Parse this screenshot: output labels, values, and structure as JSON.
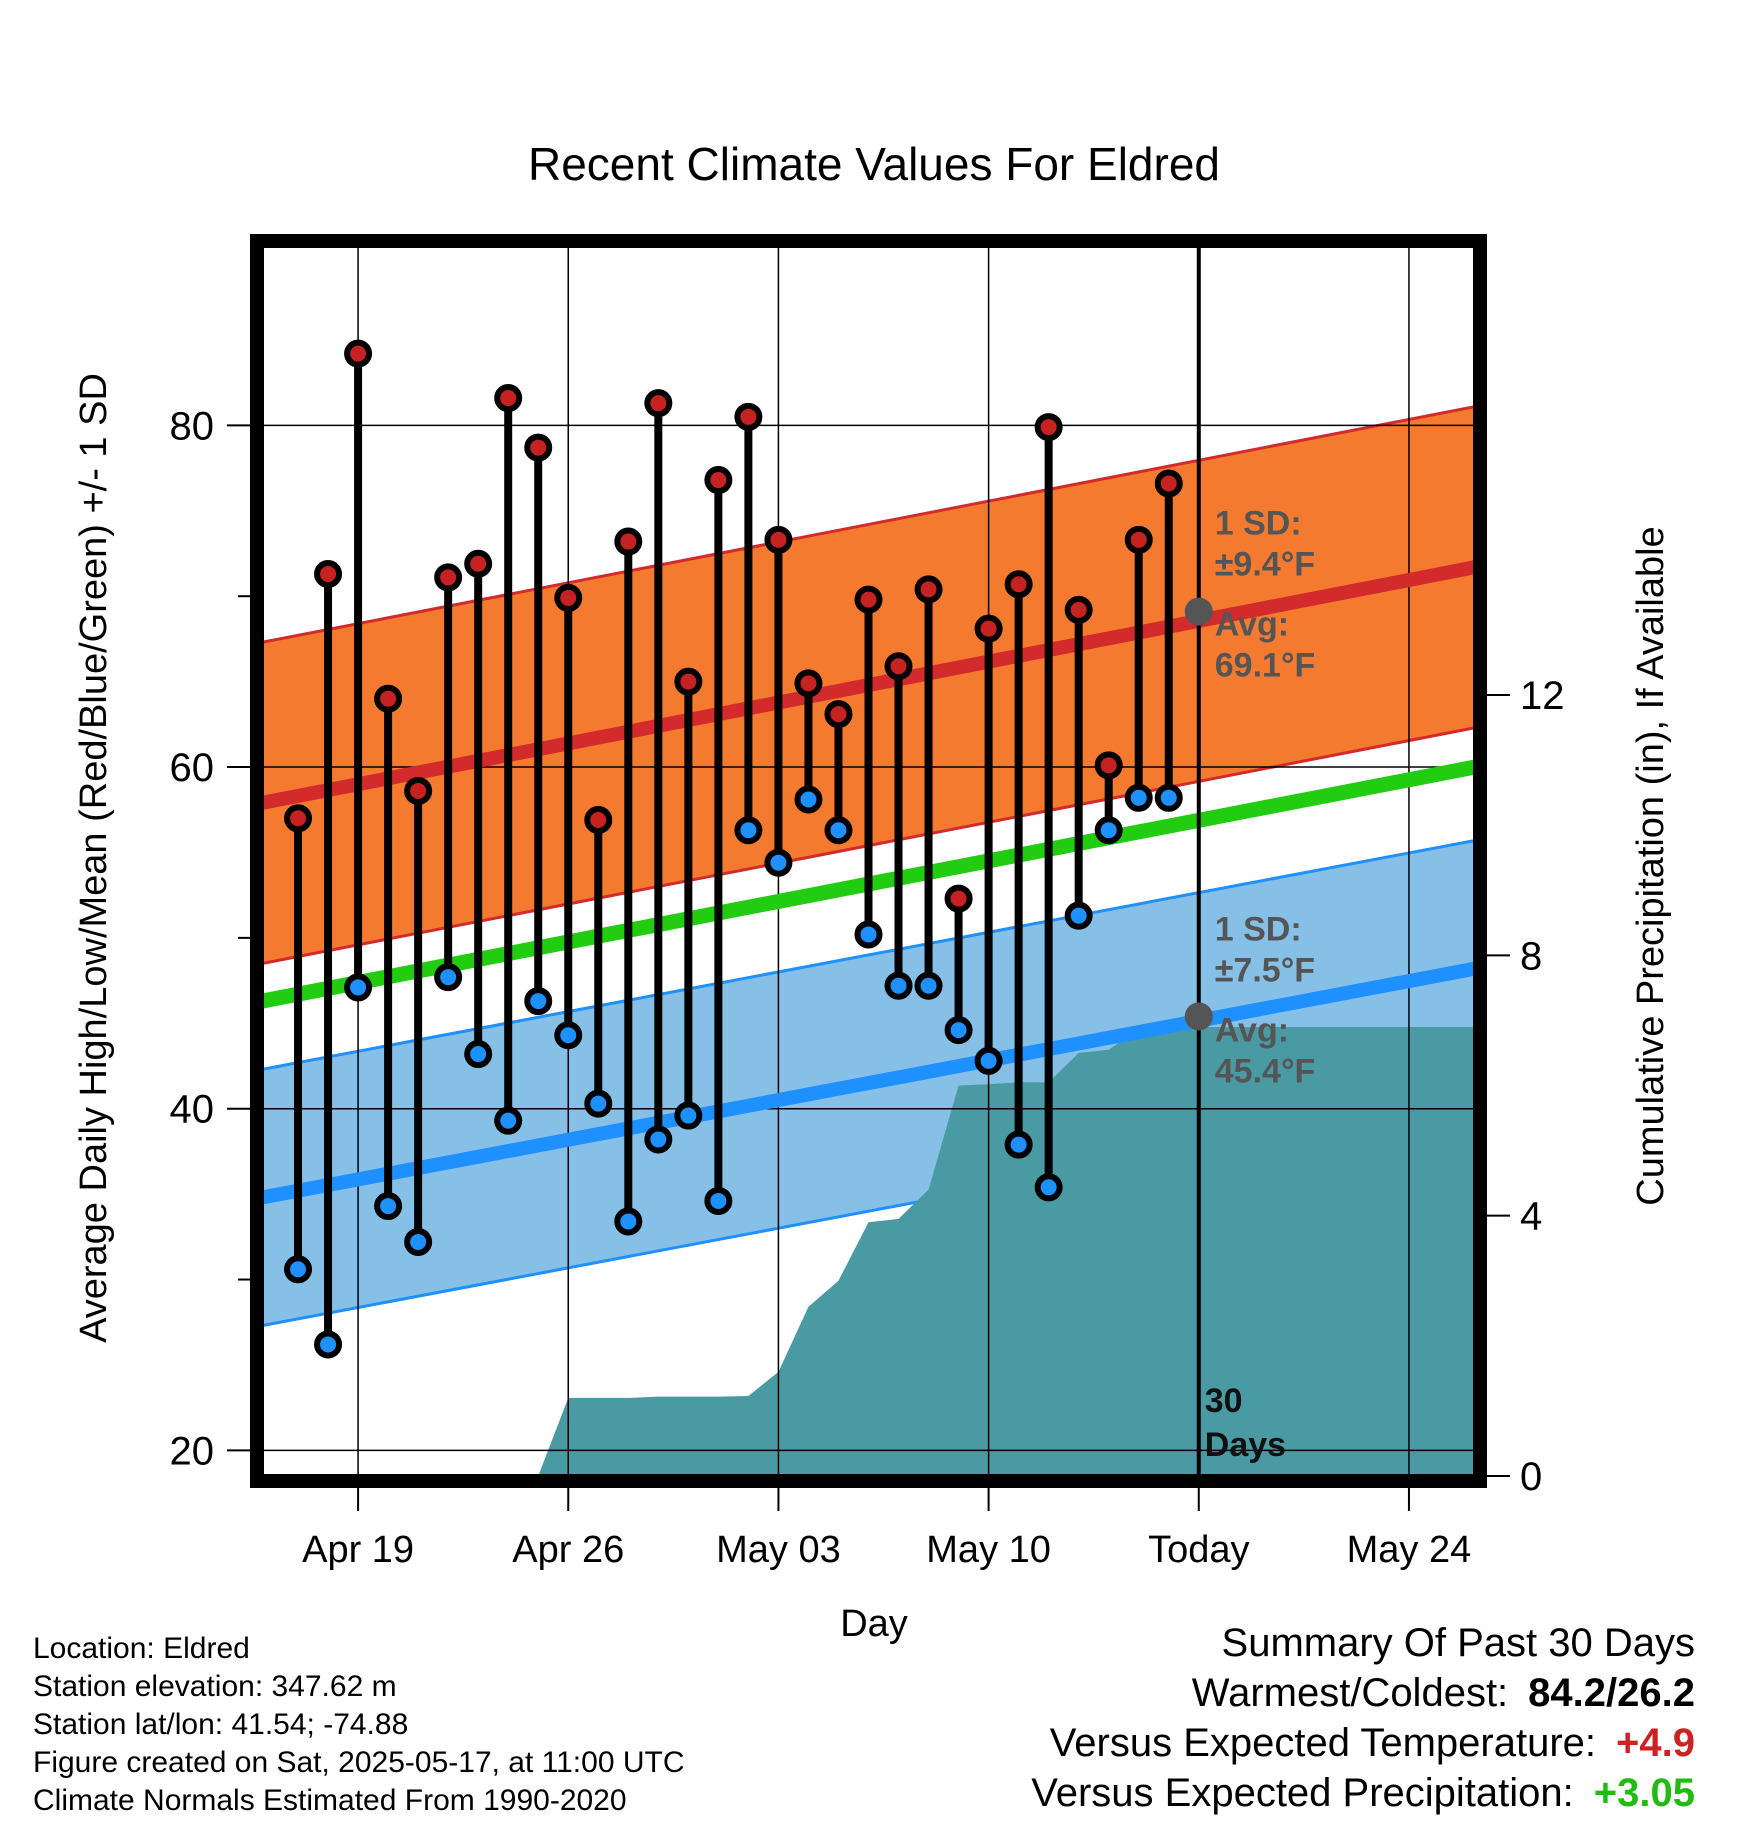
{
  "chart_data": {
    "type": "line",
    "title": "Recent Climate Values For Eldred",
    "xlabel": "Day",
    "ylabel": "Average Daily High/Low/Mean (Red/Blue/Green) +/- 1 SD",
    "y2label": "Cumulative Precipitation (in), If Available",
    "ylim": [
      18.5,
      90.5
    ],
    "y2lim": [
      0,
      18.9
    ],
    "yticks": [
      20,
      40,
      60,
      80
    ],
    "y2ticks": [
      0,
      4,
      8,
      12
    ],
    "xlim": [
      -3.2,
      37.2
    ],
    "x_tick_labels": [
      {
        "label": "Apr 19",
        "day": 0
      },
      {
        "label": "Apr 26",
        "day": 7
      },
      {
        "label": "May 03",
        "day": 14
      },
      {
        "label": "May 10",
        "day": 21
      },
      {
        "label": "Today",
        "day": 28
      },
      {
        "label": "May 24",
        "day": 35
      }
    ],
    "today_label": "30\nDays",
    "grid": true,
    "series": [
      {
        "name": "High",
        "color": "#cc2222",
        "values": [
          57.0,
          71.3,
          84.2,
          64.0,
          58.6,
          71.1,
          71.9,
          81.6,
          78.7,
          69.9,
          56.9,
          73.2,
          81.3,
          65.0,
          76.8,
          80.5,
          73.3,
          64.9,
          63.1,
          69.8,
          65.9,
          70.4,
          52.3,
          68.1,
          70.7,
          79.9,
          69.2,
          60.1,
          73.3,
          76.6
        ]
      },
      {
        "name": "Low",
        "color": "#1e90ff",
        "values": [
          30.6,
          26.2,
          47.1,
          34.3,
          32.2,
          47.7,
          43.2,
          39.3,
          46.3,
          44.3,
          40.3,
          33.4,
          38.2,
          39.6,
          34.6,
          56.3,
          54.4,
          58.1,
          56.3,
          50.2,
          47.2,
          47.2,
          44.6,
          42.8,
          37.9,
          35.4,
          51.3,
          56.3,
          58.2,
          58.2
        ]
      }
    ],
    "normals": {
      "high_mean": [
        57.9,
        71.7
      ],
      "high_sd": 9.4,
      "low_mean": [
        34.8,
        48.2
      ],
      "low_sd": 7.5,
      "mean": [
        46.3,
        60.0
      ]
    },
    "precip_cumulative": {
      "color": "#4a9aa3",
      "points": [
        [
          6.0,
          0
        ],
        [
          7.0,
          1.2
        ],
        [
          9.0,
          1.2
        ],
        [
          10.0,
          1.22
        ],
        [
          12.0,
          1.22
        ],
        [
          13.0,
          1.23
        ],
        [
          14.0,
          1.6
        ],
        [
          15.0,
          2.6
        ],
        [
          16.0,
          3.0
        ],
        [
          17.0,
          3.9
        ],
        [
          18.0,
          3.95
        ],
        [
          19.0,
          4.4
        ],
        [
          20.0,
          6.0
        ],
        [
          21.0,
          6.02
        ],
        [
          22.0,
          6.05
        ],
        [
          23.0,
          6.05
        ],
        [
          24.0,
          6.5
        ],
        [
          25.0,
          6.55
        ],
        [
          26.0,
          6.87
        ],
        [
          28.0,
          6.9
        ],
        [
          37.2,
          6.9
        ]
      ]
    },
    "annotations": {
      "high_sd": "1 SD:",
      "high_sd_value": "±9.4°F",
      "high_avg": "Avg:",
      "high_avg_value": "69.1°F",
      "low_sd": "1 SD:",
      "low_sd_value": "±7.5°F",
      "low_avg": "Avg:",
      "low_avg_value": "45.4°F",
      "today_high_avg": 69.1,
      "today_low_avg": 45.4
    },
    "colors": {
      "high_band": "#f47a30",
      "high_line": "#d32b2b",
      "low_band": "#86c0e6",
      "low_line": "#1e90ff",
      "mean_line": "#22cc11",
      "annotation": "#555555",
      "marker_high": "#c62222",
      "marker_low": "#1e90ff"
    }
  },
  "footer": {
    "location": "Location: Eldred",
    "elevation": "Station elevation: 347.62 m",
    "latlon": "Station lat/lon: 41.54; -74.88",
    "created": "Figure created on Sat, 2025-05-17, at 11:00 UTC",
    "normals": "Climate Normals Estimated From 1990-2020"
  },
  "summary": {
    "heading": "Summary Of Past 30 Days",
    "warm_cold_label": "Warmest/Coldest:",
    "warm_cold_value": "84.2/26.2",
    "temp_label": "Versus Expected Temperature:",
    "temp_value": "+4.9",
    "temp_color": "#cc2222",
    "precip_label": "Versus Expected Precipitation:",
    "precip_value": "+3.05",
    "precip_color": "#22bb11"
  }
}
